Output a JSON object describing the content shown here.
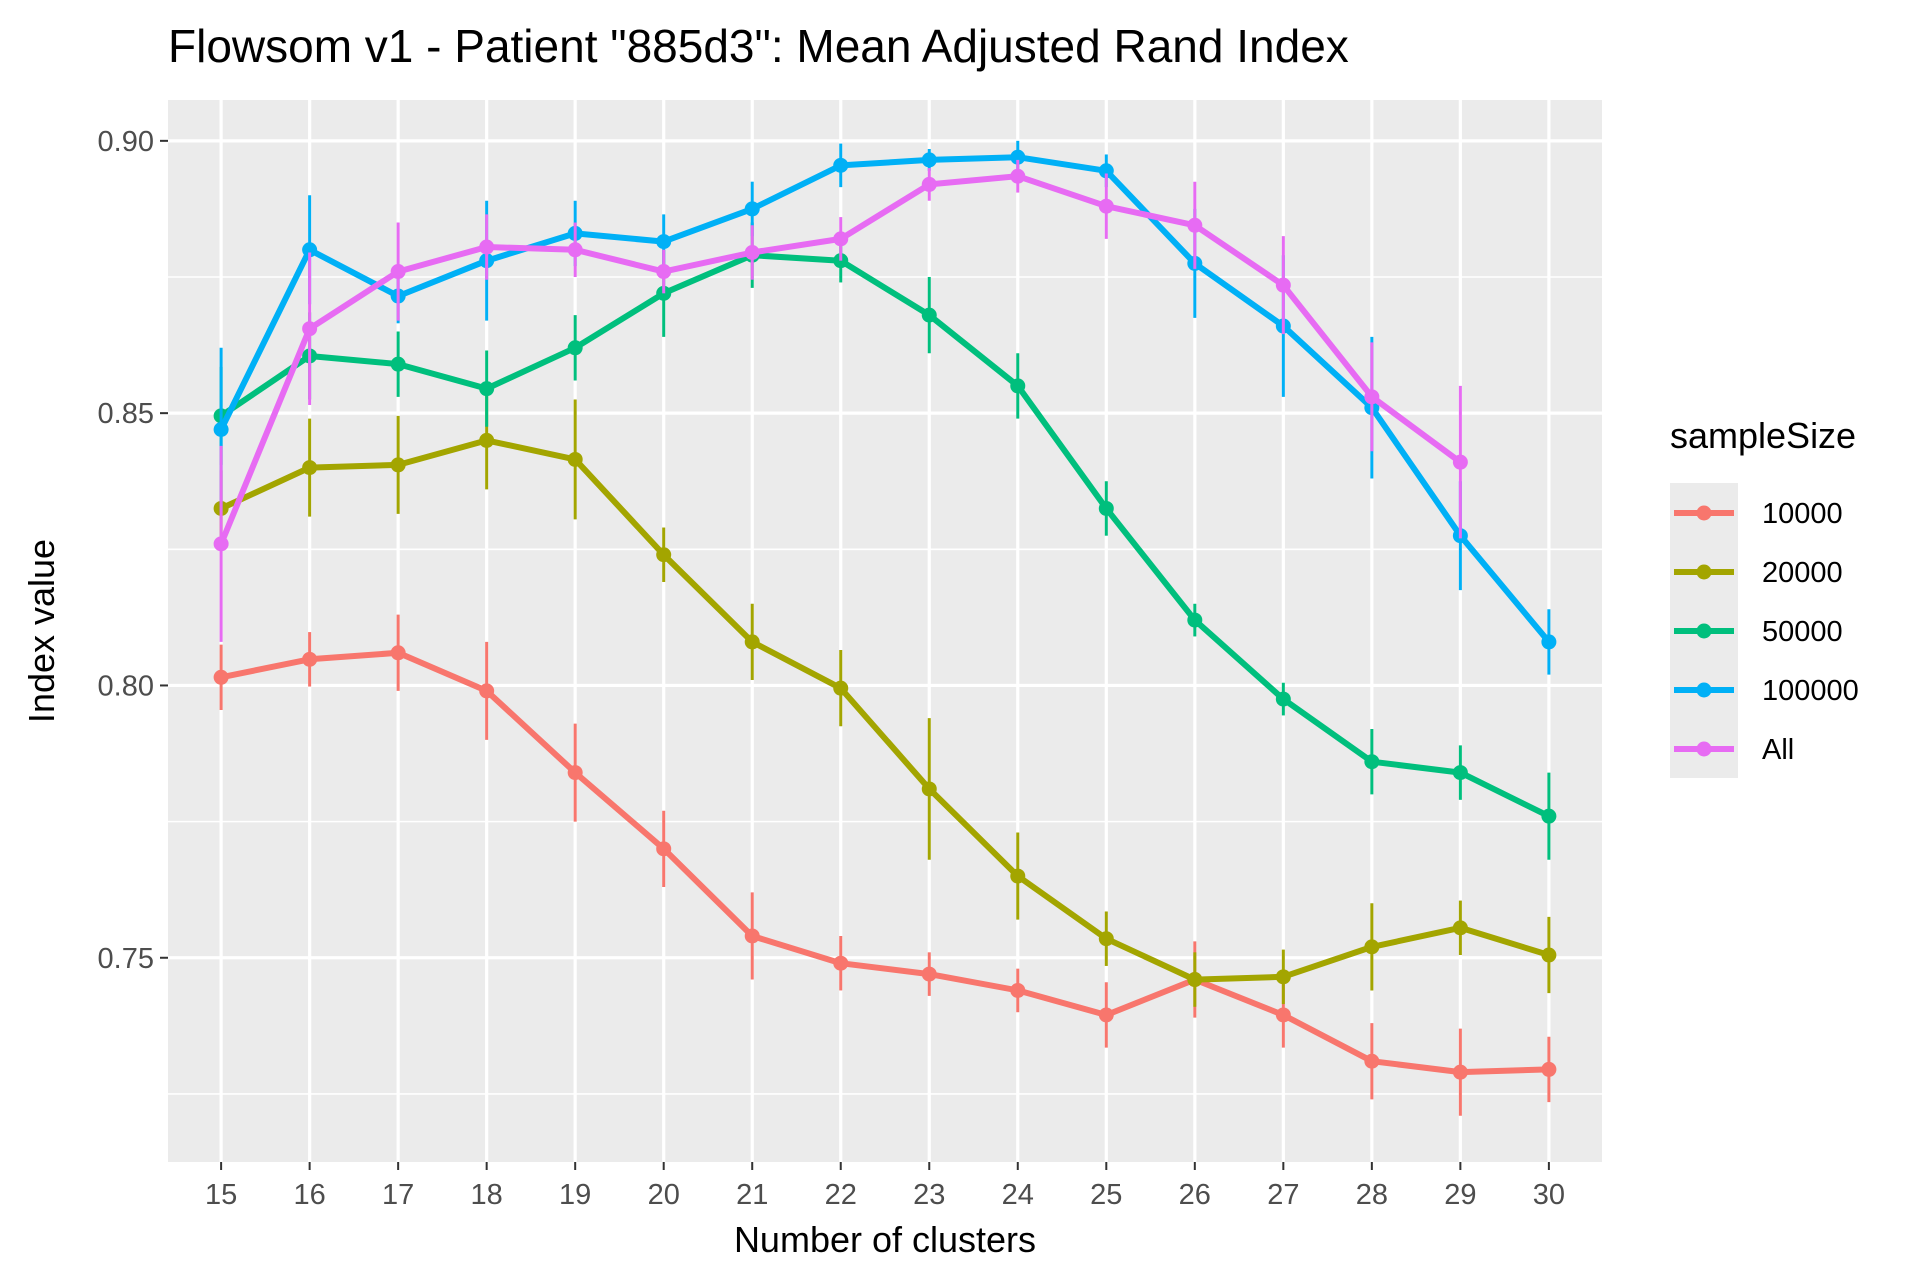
{
  "chart_data": {
    "type": "line",
    "title": "Flowsom v1 - Patient \"885d3\": Mean Adjusted Rand Index",
    "xlabel": "Number of clusters",
    "ylabel": "Index value",
    "x": [
      15,
      16,
      17,
      18,
      19,
      20,
      21,
      22,
      23,
      24,
      25,
      26,
      27,
      28,
      29,
      30
    ],
    "xlim": [
      14.4,
      30.6
    ],
    "ylim": [
      0.7125,
      0.9075
    ],
    "yticks": [
      "0.75",
      "0.80",
      "0.85",
      "0.90"
    ],
    "ytick_values": [
      0.75,
      0.8,
      0.85,
      0.9
    ],
    "grid": true,
    "legend_title": "sampleSize",
    "legend_position": "right",
    "series": [
      {
        "name": "10000",
        "color": "#F8766D",
        "values": [
          0.8015,
          0.8048,
          0.806,
          0.799,
          0.784,
          0.77,
          0.754,
          0.749,
          0.747,
          0.744,
          0.7395,
          0.746,
          0.7395,
          0.731,
          0.729,
          0.7295
        ],
        "err": [
          0.006,
          0.005,
          0.007,
          0.009,
          0.009,
          0.007,
          0.008,
          0.005,
          0.004,
          0.004,
          0.006,
          0.007,
          0.006,
          0.007,
          0.008,
          0.006
        ]
      },
      {
        "name": "20000",
        "color": "#A3A500",
        "values": [
          0.8325,
          0.84,
          0.8405,
          0.845,
          0.8415,
          0.824,
          0.808,
          0.7995,
          0.781,
          0.765,
          0.7535,
          0.746,
          0.7465,
          0.752,
          0.7555,
          0.7505
        ],
        "err": [
          0.007,
          0.009,
          0.009,
          0.009,
          0.011,
          0.005,
          0.007,
          0.007,
          0.013,
          0.008,
          0.005,
          0.005,
          0.005,
          0.008,
          0.005,
          0.007
        ]
      },
      {
        "name": "50000",
        "color": "#00BF7D",
        "values": [
          0.8495,
          0.8605,
          0.859,
          0.8545,
          0.862,
          0.872,
          0.879,
          0.878,
          0.868,
          0.855,
          0.8325,
          0.812,
          0.7975,
          0.786,
          0.784,
          0.776
        ],
        "err": [
          0.009,
          0.008,
          0.006,
          0.007,
          0.006,
          0.008,
          0.006,
          0.004,
          0.007,
          0.006,
          0.005,
          0.003,
          0.003,
          0.006,
          0.005,
          0.008
        ]
      },
      {
        "name": "100000",
        "color": "#00B0F6",
        "values": [
          0.847,
          0.88,
          0.8715,
          0.878,
          0.883,
          0.8815,
          0.8875,
          0.8955,
          0.8965,
          0.897,
          0.8945,
          0.8775,
          0.866,
          0.851,
          0.8275,
          0.808
        ],
        "err": [
          0.015,
          0.01,
          0.005,
          0.011,
          0.006,
          0.005,
          0.005,
          0.004,
          0.002,
          0.003,
          0.003,
          0.01,
          0.013,
          0.013,
          0.01,
          0.006
        ]
      },
      {
        "name": "All",
        "color": "#E76BF3",
        "values": [
          0.826,
          0.8655,
          0.876,
          0.8805,
          0.88,
          0.876,
          0.8795,
          0.882,
          0.892,
          0.8935,
          0.888,
          0.8845,
          0.8735,
          0.853,
          0.841,
          null
        ],
        "err": [
          0.018,
          0.014,
          0.009,
          0.006,
          0.005,
          0.004,
          0.005,
          0.004,
          0.003,
          0.003,
          0.006,
          0.008,
          0.009,
          0.01,
          0.014,
          null
        ]
      }
    ]
  }
}
